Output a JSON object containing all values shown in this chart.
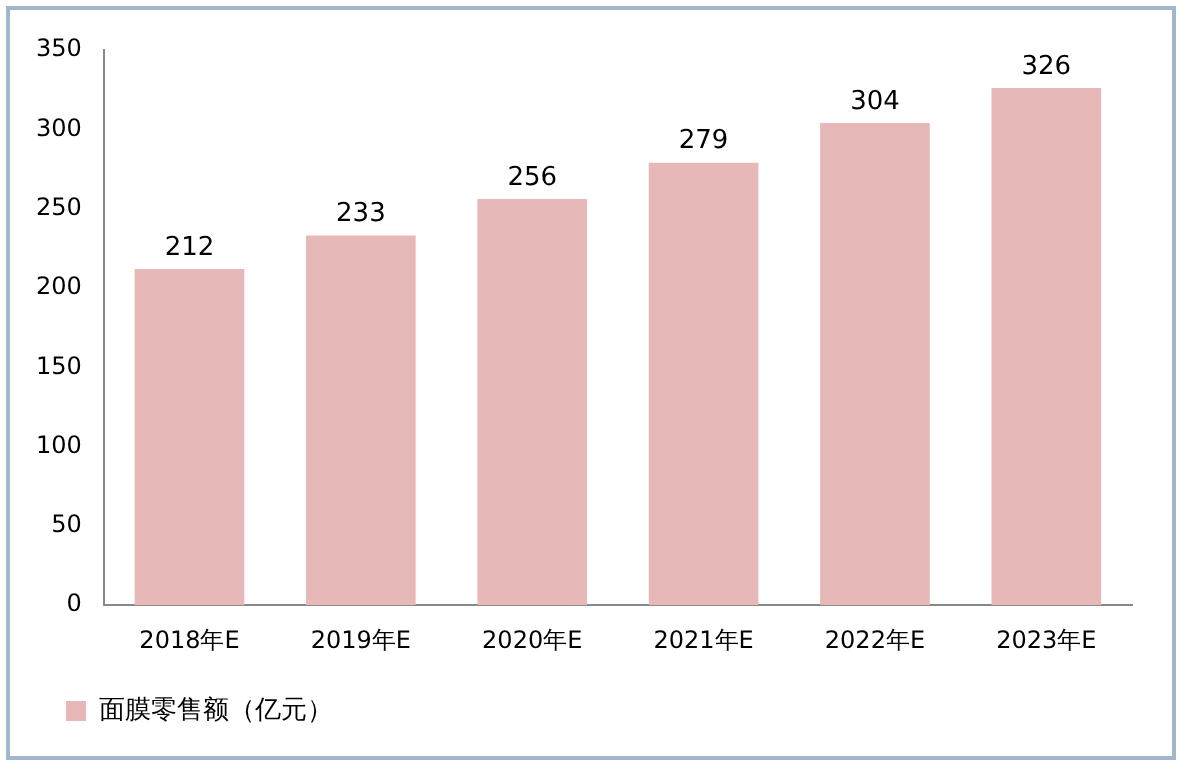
{
  "chart_data": {
    "type": "bar",
    "categories": [
      "2018年E",
      "2019年E",
      "2020年E",
      "2021年E",
      "2022年E",
      "2023年E"
    ],
    "series": [
      {
        "name": "面膜零售额（亿元）",
        "color": "#e6b9b8",
        "values": [
          212,
          233,
          256,
          279,
          304,
          326
        ]
      }
    ],
    "ylim": [
      0,
      350
    ],
    "yticks": [
      0,
      50,
      100,
      150,
      200,
      250,
      300,
      350
    ],
    "grid": false,
    "legend": "bottom",
    "data_labels": true
  }
}
